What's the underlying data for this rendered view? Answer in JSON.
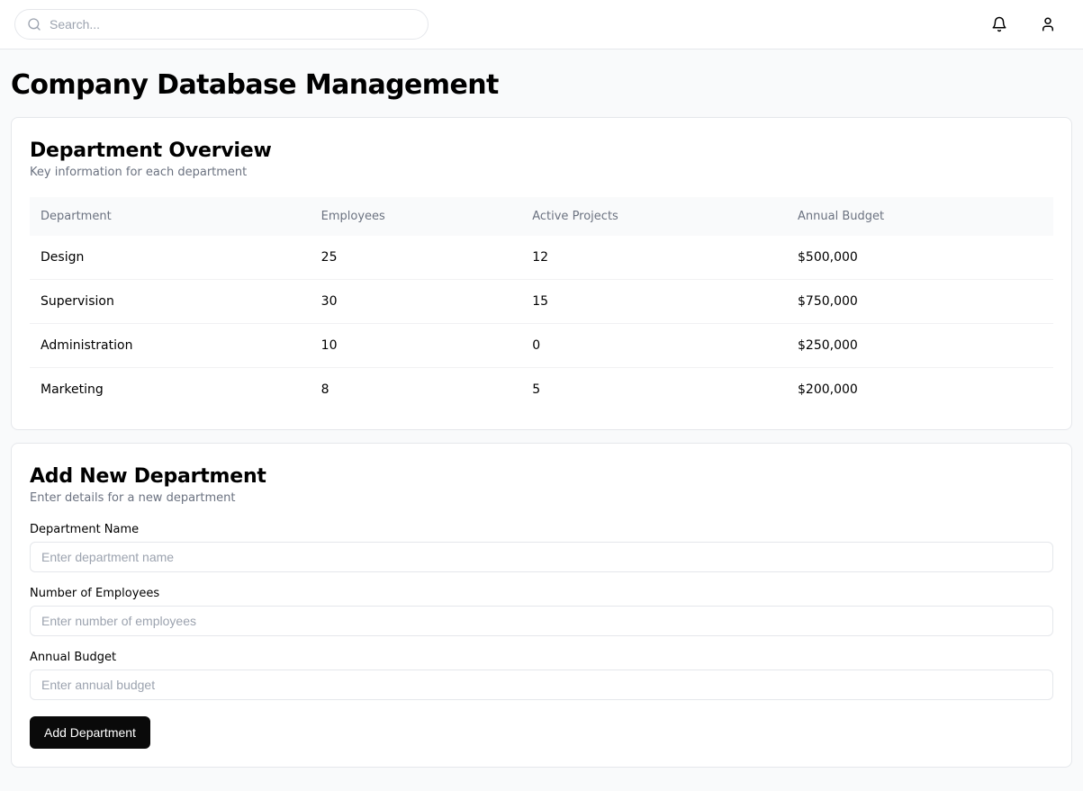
{
  "header": {
    "search_placeholder": "Search..."
  },
  "page": {
    "title": "Company Database Management"
  },
  "overview": {
    "title": "Department Overview",
    "subtitle": "Key information for each department",
    "columns": [
      "Department",
      "Employees",
      "Active Projects",
      "Annual Budget"
    ],
    "rows": [
      {
        "department": "Design",
        "employees": "25",
        "projects": "12",
        "budget": "$500,000"
      },
      {
        "department": "Supervision",
        "employees": "30",
        "projects": "15",
        "budget": "$750,000"
      },
      {
        "department": "Administration",
        "employees": "10",
        "projects": "0",
        "budget": "$250,000"
      },
      {
        "department": "Marketing",
        "employees": "8",
        "projects": "5",
        "budget": "$200,000"
      }
    ]
  },
  "form": {
    "title": "Add New Department",
    "subtitle": "Enter details for a new department",
    "fields": {
      "name": {
        "label": "Department Name",
        "placeholder": "Enter department name"
      },
      "employees": {
        "label": "Number of Employees",
        "placeholder": "Enter number of employees"
      },
      "budget": {
        "label": "Annual Budget",
        "placeholder": "Enter annual budget"
      }
    },
    "submit_label": "Add Department"
  }
}
